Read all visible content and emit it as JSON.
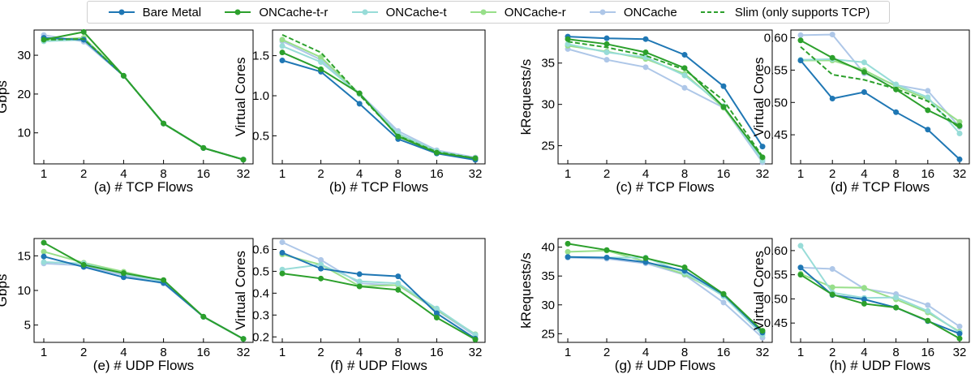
{
  "legend": [
    {
      "name": "Bare Metal",
      "color": "#1f77b4",
      "dashed": false,
      "marker": true
    },
    {
      "name": "ONCache-t-r",
      "color": "#2ca02c",
      "dashed": false,
      "marker": true
    },
    {
      "name": "ONCache-t",
      "color": "#98dcd8",
      "dashed": false,
      "marker": true
    },
    {
      "name": "ONCache-r",
      "color": "#98df8a",
      "dashed": false,
      "marker": true
    },
    {
      "name": "ONCache",
      "color": "#aec7e8",
      "dashed": false,
      "marker": true
    },
    {
      "name": "Slim (only supports TCP)",
      "color": "#2ca02c",
      "dashed": true,
      "marker": false
    }
  ],
  "chart_data": [
    {
      "type": "line",
      "xlabel": "(a) # TCP Flows",
      "ylabel": "Gbps",
      "categories": [
        "1",
        "2",
        "4",
        "8",
        "16",
        "32"
      ],
      "ylim": [
        2,
        36.5
      ],
      "yticks": [
        10,
        20,
        30
      ],
      "series": [
        {
          "name": "Bare Metal",
          "values": [
            34.5,
            34.0,
            24.7,
            12.4,
            6.1,
            3.1
          ]
        },
        {
          "name": "ONCache-t-r",
          "values": [
            34.0,
            36.0,
            24.7,
            12.4,
            6.1,
            3.1
          ]
        },
        {
          "name": "ONCache-t",
          "values": [
            33.6,
            34.0,
            24.7,
            12.4,
            6.1,
            3.1
          ]
        },
        {
          "name": "ONCache-r",
          "values": [
            33.9,
            34.5,
            24.7,
            12.4,
            6.1,
            3.1
          ]
        },
        {
          "name": "ONCache",
          "values": [
            35.2,
            33.5,
            24.7,
            12.4,
            6.1,
            3.1
          ]
        },
        {
          "name": "Slim (only supports TCP)",
          "values": [
            34.0,
            34.2,
            24.7,
            12.4,
            6.1,
            3.1
          ]
        }
      ]
    },
    {
      "type": "line",
      "xlabel": "(b) # TCP Flows",
      "ylabel": "Virtual Cores",
      "categories": [
        "1",
        "2",
        "4",
        "8",
        "16",
        "32"
      ],
      "ylim": [
        0.15,
        1.82
      ],
      "yticks": [
        0.5,
        1.0,
        1.5
      ],
      "tickdecimals": 1,
      "series": [
        {
          "name": "Bare Metal",
          "values": [
            1.44,
            1.3,
            0.9,
            0.46,
            0.28,
            0.2
          ]
        },
        {
          "name": "ONCache-t-r",
          "values": [
            1.54,
            1.33,
            1.03,
            0.49,
            0.29,
            0.22
          ]
        },
        {
          "name": "ONCache-t",
          "values": [
            1.62,
            1.42,
            1.02,
            0.53,
            0.31,
            0.22
          ]
        },
        {
          "name": "ONCache-r",
          "values": [
            1.7,
            1.48,
            1.02,
            0.51,
            0.3,
            0.22
          ]
        },
        {
          "name": "ONCache",
          "values": [
            1.68,
            1.45,
            1.03,
            0.56,
            0.32,
            0.23
          ]
        },
        {
          "name": "Slim (only supports TCP)",
          "values": [
            1.76,
            1.54,
            1.01,
            0.5,
            0.3,
            0.22
          ]
        }
      ]
    },
    {
      "type": "line",
      "xlabel": "(c) # TCP Flows",
      "ylabel": "kRequests/s",
      "categories": [
        "1",
        "2",
        "4",
        "8",
        "16",
        "32"
      ],
      "ylim": [
        22.8,
        39.0
      ],
      "yticks": [
        25,
        30,
        35
      ],
      "series": [
        {
          "name": "Bare Metal",
          "values": [
            38.2,
            38.0,
            37.9,
            36.0,
            32.2,
            24.9
          ]
        },
        {
          "name": "ONCache-t-r",
          "values": [
            37.9,
            37.3,
            36.3,
            34.4,
            29.7,
            23.6
          ]
        },
        {
          "name": "ONCache-t",
          "values": [
            37.3,
            36.3,
            35.7,
            33.5,
            29.8,
            23.2
          ]
        },
        {
          "name": "ONCache-r",
          "values": [
            37.1,
            36.4,
            35.5,
            33.7,
            29.6,
            23.4
          ]
        },
        {
          "name": "ONCache",
          "values": [
            36.7,
            35.4,
            34.5,
            32.0,
            29.6,
            23.0
          ]
        },
        {
          "name": "Slim (only supports TCP)",
          "values": [
            37.6,
            36.9,
            35.9,
            34.2,
            30.5,
            23.7
          ]
        }
      ]
    },
    {
      "type": "line",
      "xlabel": "(d) # TCP Flows",
      "ylabel": "Virtual Cores",
      "categories": [
        "1",
        "2",
        "4",
        "8",
        "16",
        "32"
      ],
      "ylim": [
        0.405,
        0.612
      ],
      "yticks": [
        0.45,
        0.5,
        0.55,
        0.6
      ],
      "tickdecimals": 2,
      "series": [
        {
          "name": "Bare Metal",
          "values": [
            0.565,
            0.506,
            0.516,
            0.485,
            0.458,
            0.412
          ]
        },
        {
          "name": "ONCache-t-r",
          "values": [
            0.596,
            0.569,
            0.547,
            0.52,
            0.488,
            0.464
          ]
        },
        {
          "name": "ONCache-t",
          "values": [
            0.566,
            0.567,
            0.562,
            0.528,
            0.508,
            0.452
          ]
        },
        {
          "name": "ONCache-r",
          "values": [
            0.565,
            0.565,
            0.55,
            0.525,
            0.505,
            0.47
          ]
        },
        {
          "name": "ONCache",
          "values": [
            0.604,
            0.605,
            0.545,
            0.527,
            0.518,
            0.462
          ]
        },
        {
          "name": "Slim (only supports TCP)",
          "values": [
            0.586,
            0.543,
            0.535,
            0.521,
            0.502,
            0.46
          ]
        }
      ]
    },
    {
      "type": "line",
      "xlabel": "(e) # UDP Flows",
      "ylabel": "Gbps",
      "categories": [
        "1",
        "2",
        "4",
        "8",
        "16",
        "32"
      ],
      "ylim": [
        2.5,
        17.5
      ],
      "yticks": [
        5,
        10,
        15
      ],
      "series": [
        {
          "name": "Bare Metal",
          "values": [
            14.9,
            13.4,
            11.9,
            11.1,
            6.2,
            3.0
          ]
        },
        {
          "name": "ONCache-t-r",
          "values": [
            16.9,
            13.7,
            12.5,
            11.5,
            6.2,
            3.0
          ]
        },
        {
          "name": "ONCache-t",
          "values": [
            14.1,
            13.9,
            12.4,
            11.3,
            6.2,
            3.0
          ]
        },
        {
          "name": "ONCache-r",
          "values": [
            15.6,
            14.0,
            12.7,
            11.4,
            6.2,
            3.0
          ]
        },
        {
          "name": "ONCache",
          "values": [
            13.9,
            13.6,
            12.2,
            11.0,
            6.2,
            3.0
          ]
        }
      ]
    },
    {
      "type": "line",
      "xlabel": "(f) # UDP Flows",
      "ylabel": "Virtual Cores",
      "categories": [
        "1",
        "2",
        "4",
        "8",
        "16",
        "32"
      ],
      "ylim": [
        0.175,
        0.65
      ],
      "yticks": [
        0.2,
        0.3,
        0.4,
        0.5,
        0.6
      ],
      "tickdecimals": 1,
      "series": [
        {
          "name": "Bare Metal",
          "values": [
            0.585,
            0.512,
            0.487,
            0.477,
            0.308,
            0.192
          ]
        },
        {
          "name": "ONCache-t-r",
          "values": [
            0.49,
            0.467,
            0.431,
            0.415,
            0.288,
            0.188
          ]
        },
        {
          "name": "ONCache-t",
          "values": [
            0.508,
            0.531,
            0.454,
            0.445,
            0.33,
            0.21
          ]
        },
        {
          "name": "ONCache-r",
          "values": [
            0.577,
            0.53,
            0.432,
            0.437,
            0.325,
            0.212
          ]
        },
        {
          "name": "ONCache",
          "values": [
            0.633,
            0.552,
            0.445,
            0.436,
            0.322,
            0.205
          ]
        }
      ]
    },
    {
      "type": "line",
      "xlabel": "(g) # UDP Flows",
      "ylabel": "kRequests/s",
      "categories": [
        "1",
        "2",
        "4",
        "8",
        "16",
        "32"
      ],
      "ylim": [
        23.5,
        41.5
      ],
      "yticks": [
        25,
        30,
        35,
        40
      ],
      "series": [
        {
          "name": "Bare Metal",
          "values": [
            38.3,
            38.2,
            37.4,
            35.9,
            31.8,
            25.2
          ]
        },
        {
          "name": "ONCache-t-r",
          "values": [
            40.6,
            39.5,
            38.1,
            36.5,
            31.9,
            25.5
          ]
        },
        {
          "name": "ONCache-t",
          "values": [
            38.3,
            38.2,
            38.2,
            35.6,
            31.5,
            24.8
          ]
        },
        {
          "name": "ONCache-r",
          "values": [
            39.2,
            39.4,
            37.5,
            35.3,
            31.7,
            25.3
          ]
        },
        {
          "name": "ONCache",
          "values": [
            38.2,
            38.0,
            37.2,
            35.2,
            30.4,
            24.3
          ]
        }
      ]
    },
    {
      "type": "line",
      "xlabel": "(h) # UDP Flows",
      "ylabel": "Virtual Cores",
      "categories": [
        "1",
        "2",
        "4",
        "8",
        "16",
        "32"
      ],
      "ylim": [
        0.41,
        0.625
      ],
      "yticks": [
        0.45,
        0.5,
        0.55,
        0.6
      ],
      "tickdecimals": 2,
      "series": [
        {
          "name": "Bare Metal",
          "values": [
            0.565,
            0.508,
            0.499,
            0.482,
            0.454,
            0.428
          ]
        },
        {
          "name": "ONCache-t-r",
          "values": [
            0.55,
            0.509,
            0.49,
            0.482,
            0.455,
            0.418
          ]
        },
        {
          "name": "ONCache-t",
          "values": [
            0.61,
            0.513,
            0.502,
            0.503,
            0.475,
            0.43
          ]
        },
        {
          "name": "ONCache-r",
          "values": [
            0.552,
            0.524,
            0.523,
            0.499,
            0.472,
            0.432
          ]
        },
        {
          "name": "ONCache",
          "values": [
            0.565,
            0.562,
            0.521,
            0.51,
            0.487,
            0.443
          ]
        }
      ]
    }
  ]
}
